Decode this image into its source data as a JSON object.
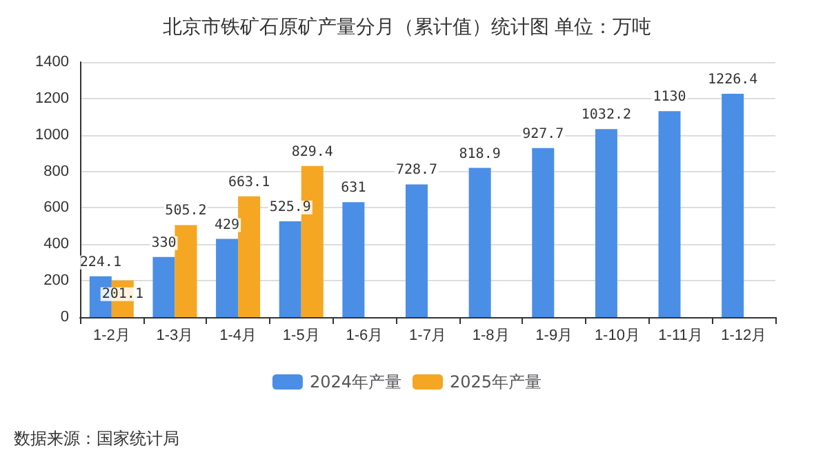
{
  "chart_data": {
    "type": "bar",
    "title": "北京市铁矿石原矿产量分月（累计值）统计图 单位：万吨",
    "categories": [
      "1-2月",
      "1-3月",
      "1-4月",
      "1-5月",
      "1-6月",
      "1-7月",
      "1-8月",
      "1-9月",
      "1-10月",
      "1-11月",
      "1-12月"
    ],
    "series": [
      {
        "name": "2024年产量",
        "color": "#4a8ee6",
        "values": [
          224.1,
          330,
          429,
          525.9,
          631,
          728.7,
          818.9,
          927.7,
          1032.2,
          1130,
          1226.4
        ]
      },
      {
        "name": "2025年产量",
        "color": "#f5a623",
        "values": [
          201.1,
          505.2,
          663.1,
          829.4,
          null,
          null,
          null,
          null,
          null,
          null,
          null
        ]
      }
    ],
    "ylim": [
      0,
      1400
    ],
    "yticks": [
      0,
      200,
      400,
      600,
      800,
      1000,
      1200,
      1400
    ],
    "grid": "y",
    "legend": "bottom",
    "data_labels": true,
    "annotations": [
      "数据来源：国家统计局"
    ]
  }
}
